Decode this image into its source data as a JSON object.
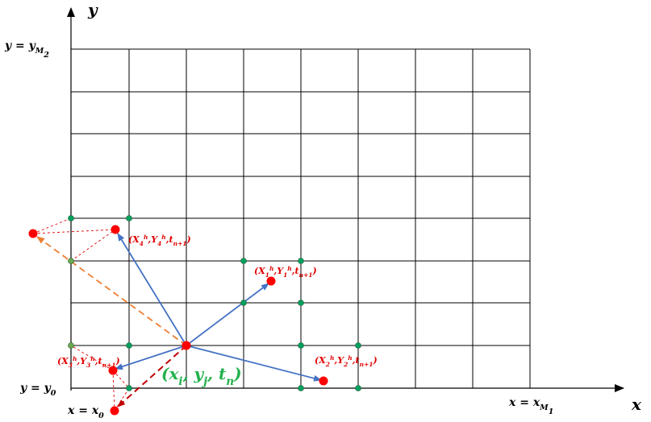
{
  "axes": {
    "x_label": "x",
    "y_label": "y"
  },
  "bounds": {
    "y_top": "y = y_{M_2}",
    "y_bottom": "y = y_0",
    "x_left": "x = x_0",
    "x_right": "x = x_{M_1}"
  },
  "center_label": "(x_i, y_j, t_n)",
  "points": [
    {
      "id": "p1",
      "label": "(X_1^h,Y_1^h,t_{n+1})"
    },
    {
      "id": "p2",
      "label": "(X_2^h,Y_2^h,t_{n+1})"
    },
    {
      "id": "p3",
      "label": "(X_3^h,Y_3^h,t_{n+1})"
    },
    {
      "id": "p4",
      "label": "(X_4^h,Y_4^h,t_{n+1})"
    }
  ],
  "colors": {
    "grid": "#000000",
    "arrow_blue": "#4472c4",
    "arrow_orange": "#ed7d31",
    "arrow_darkred": "#c00000",
    "point_red": "#ff0000",
    "node_green": "#00a060",
    "label_red": "#e00000",
    "label_green": "#22b14c"
  }
}
